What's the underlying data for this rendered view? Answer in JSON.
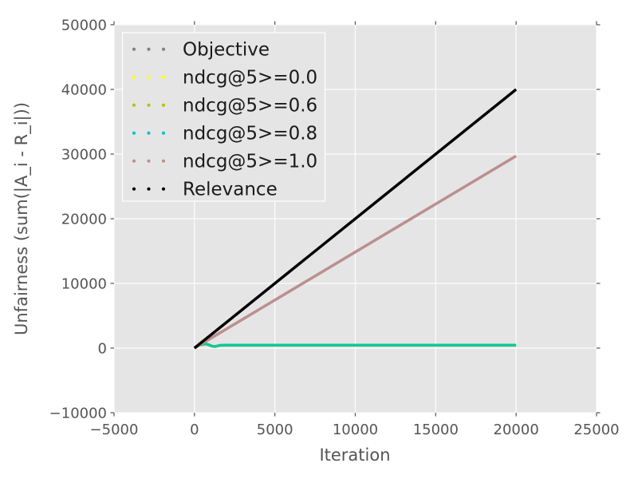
{
  "figure": {
    "background_color": "#ffffff",
    "plot_background_color": "#e5e5e5",
    "gridline_color": "#fafafa",
    "tick_color": "#555555",
    "label_color": "#555555",
    "legend": {
      "background_color": "#e5e5e5",
      "border_color": "#ffffff",
      "marker_style": "three-dots",
      "items": [
        {
          "label": "Objective",
          "marker_color": "#808080"
        },
        {
          "label": "ndcg@5>=0.0",
          "marker_color": "#ffff00"
        },
        {
          "label": "ndcg@5>=0.6",
          "marker_color": "#bfbf00"
        },
        {
          "label": "ndcg@5>=0.8",
          "marker_color": "#00c4cd"
        },
        {
          "label": "ndcg@5>=1.0",
          "marker_color": "#bc8f8f"
        },
        {
          "label": "Relevance",
          "marker_color": "#000000"
        }
      ]
    }
  },
  "chart_data": {
    "type": "line",
    "title": "",
    "xlabel": "Iteration",
    "ylabel": "Unfairness (sum(|A_i - R_i|))",
    "xlim": [
      -5000,
      25000
    ],
    "ylim": [
      -10000,
      50000
    ],
    "xticks": [
      -5000,
      0,
      5000,
      10000,
      15000,
      20000,
      25000
    ],
    "yticks": [
      -10000,
      0,
      10000,
      20000,
      30000,
      40000,
      50000
    ],
    "xtick_labels": [
      "−5000",
      "0",
      "5000",
      "10000",
      "15000",
      "20000",
      "25000"
    ],
    "ytick_labels": [
      "−10000",
      "0",
      "10000",
      "20000",
      "30000",
      "40000",
      "50000"
    ],
    "grid": true,
    "legend_position": "upper left",
    "series": [
      {
        "name": "Objective",
        "color": "#808080",
        "x": [
          0,
          250,
          500,
          700,
          900,
          1100,
          1300,
          1600,
          2000,
          2500,
          20000
        ],
        "y": [
          0,
          430,
          560,
          650,
          500,
          300,
          250,
          420,
          470,
          450,
          450
        ],
        "note": "hidden beneath flat ndcg lines near y≈450"
      },
      {
        "name": "ndcg@5>=0.0",
        "color": "#ffff00",
        "x": [
          0,
          250,
          500,
          700,
          900,
          1100,
          1300,
          1600,
          2000,
          2500,
          20000
        ],
        "y": [
          0,
          430,
          560,
          650,
          500,
          300,
          250,
          420,
          470,
          450,
          450
        ],
        "note": "hidden beneath flat ndcg lines near y≈450"
      },
      {
        "name": "ndcg@5>=0.6",
        "color": "#bfbf00",
        "x": [
          0,
          250,
          500,
          700,
          900,
          1100,
          1300,
          1600,
          2000,
          2500,
          20000
        ],
        "y": [
          0,
          430,
          560,
          650,
          500,
          300,
          250,
          420,
          470,
          450,
          450
        ],
        "note": "hidden beneath flat ndcg lines near y≈450"
      },
      {
        "name": "ndcg@5>=0.8",
        "color": "#00c4cd",
        "line_color": "#0fc8a0",
        "x": [
          0,
          250,
          500,
          700,
          900,
          1100,
          1300,
          1600,
          2000,
          2500,
          20000
        ],
        "y": [
          0,
          430,
          560,
          650,
          500,
          300,
          250,
          420,
          470,
          450,
          450
        ],
        "note": "visible flat teal line ending at x=20000"
      },
      {
        "name": "ndcg@5>=1.0",
        "color": "#bc8f8f",
        "x": [
          0,
          20000
        ],
        "y": [
          0,
          29700
        ]
      },
      {
        "name": "Relevance",
        "color": "#000000",
        "x": [
          0,
          20000
        ],
        "y": [
          0,
          40000
        ]
      }
    ]
  }
}
